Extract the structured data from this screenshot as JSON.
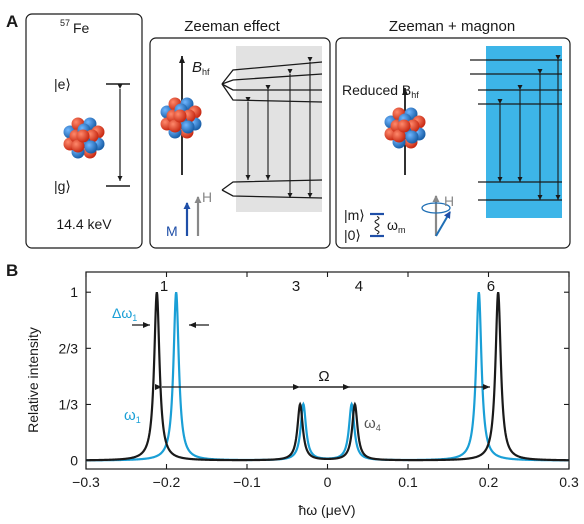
{
  "panel_a": {
    "letter": "A",
    "box1": {
      "isotope_sup": "57",
      "isotope": "Fe",
      "excited": "|e⟩",
      "ground": "|g⟩",
      "energy": "14.4 keV"
    },
    "box2": {
      "title": "Zeeman effect",
      "field": "B",
      "field_sub": "hf",
      "m_label": "M",
      "h_label": "H"
    },
    "box3": {
      "title": "Zeeman + magnon",
      "reduced": "Reduced B",
      "reduced_sub": "hf",
      "m_state": "|m⟩",
      "zero_state": "|0⟩",
      "omega_m": "ω",
      "omega_m_sub": "m",
      "h_label": "H"
    }
  },
  "colors": {
    "black": "#1a1a1a",
    "cyan": "#1a9fd6",
    "cyan_fill": "#3db5e8",
    "grey_fill": "#e2e2e2",
    "red": "#e0402a",
    "blue": "#1f6fb5",
    "arrow_blue": "#1f4fa8",
    "arrow_grey": "#888888"
  },
  "panel_b": {
    "letter": "B",
    "chart_data": {
      "type": "line",
      "xlabel": "ħω (μeV)",
      "ylabel": "Relative intensity",
      "xlim": [
        -0.3,
        0.3
      ],
      "ylim": [
        -0.05,
        1.12
      ],
      "xticks": [
        "−0.3",
        "−0.2",
        "−0.1",
        "0",
        "0.1",
        "0.2",
        "0.3"
      ],
      "xtick_values": [
        -0.3,
        -0.2,
        -0.1,
        0,
        0.1,
        0.2,
        0.3
      ],
      "yticks": [
        "0",
        "1/3",
        "2/3",
        "1"
      ],
      "ytick_values": [
        0,
        0.3333,
        0.6667,
        1
      ],
      "series": [
        {
          "color": "black",
          "width": 0.004,
          "peaks": [
            {
              "x": -0.212,
              "y": 1.0
            },
            {
              "x": -0.034,
              "y": 0.333
            },
            {
              "x": 0.034,
              "y": 0.333
            },
            {
              "x": 0.212,
              "y": 1.0
            }
          ]
        },
        {
          "color": "cyan",
          "width": 0.004,
          "peaks": [
            {
              "x": -0.188,
              "y": 1.0
            },
            {
              "x": -0.03,
              "y": 0.333
            },
            {
              "x": 0.03,
              "y": 0.333
            },
            {
              "x": 0.188,
              "y": 1.0
            }
          ]
        }
      ],
      "peak_labels": [
        {
          "text": "1",
          "x": -0.203
        },
        {
          "text": "3",
          "x": -0.039
        },
        {
          "text": "4",
          "x": 0.039
        },
        {
          "text": "6",
          "x": 0.203
        }
      ],
      "annotations": {
        "delta_omega": "Δω",
        "delta_omega_sub": "1",
        "omega_big": "Ω",
        "omega1": "ω",
        "omega1_sub": "1",
        "omega4": "ω",
        "omega4_sub": "4"
      }
    }
  }
}
